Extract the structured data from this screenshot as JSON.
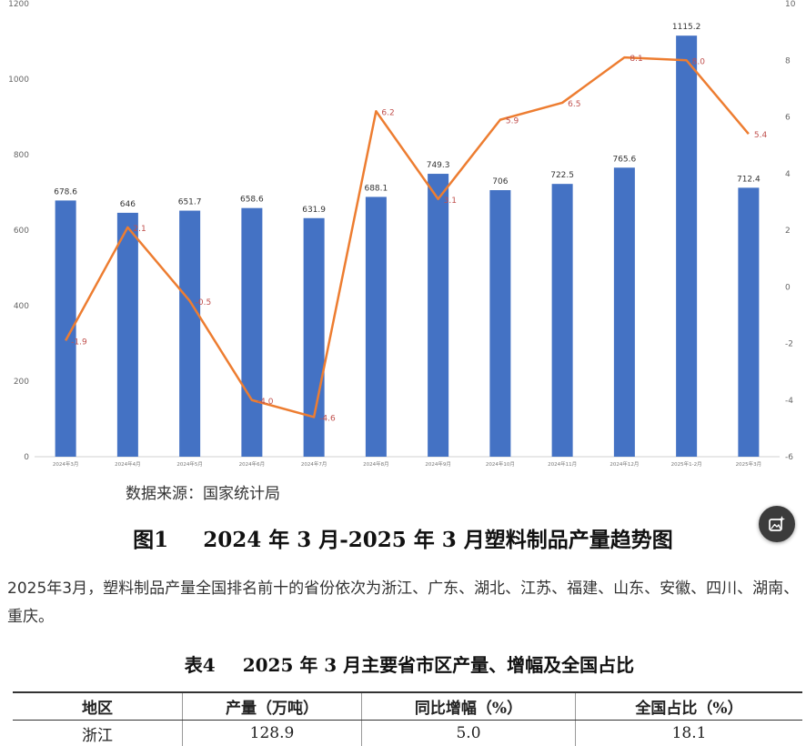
{
  "chart_data": {
    "type": "bar+line",
    "categories": [
      "2024年3月",
      "2024年4月",
      "2024年5月",
      "2024年6月",
      "2024年7月",
      "2024年8月",
      "2024年9月",
      "2024年10月",
      "2024年11月",
      "2024年12月",
      "2025年1-2月",
      "2025年3月"
    ],
    "series": [
      {
        "type": "bar",
        "axis": "left",
        "color": "#4472C4",
        "values": [
          678.6,
          646,
          651.7,
          658.6,
          631.9,
          688.1,
          749.3,
          706,
          722.5,
          765.6,
          1115.2,
          712.4
        ],
        "labels": [
          "678.6",
          "646",
          "651.7",
          "658.6",
          "631.9",
          "688.1",
          "749.3",
          "706",
          "722.5",
          "765.6",
          "1115.2",
          "712.4"
        ]
      },
      {
        "type": "line",
        "axis": "right",
        "color": "#ED7D31",
        "values": [
          -1.9,
          2.1,
          -0.5,
          -4.0,
          -4.6,
          6.2,
          3.1,
          5.9,
          6.5,
          8.1,
          8.0,
          5.4
        ],
        "labels": [
          "-1.9",
          "2.1",
          "-0.5",
          "-4.0",
          "-4.6",
          "6.2",
          "3.1",
          "5.9",
          "6.5",
          "8.1",
          "8.0",
          "5.4"
        ]
      }
    ],
    "ylim_left": [
      0,
      1200
    ],
    "left_ticks": [
      "0",
      "200",
      "400",
      "600",
      "800",
      "1000",
      "1200"
    ],
    "ylim_right": [
      -6,
      10
    ],
    "right_ticks": [
      "-6",
      "-4",
      "-2",
      "0",
      "2",
      "4",
      "6",
      "8",
      "10"
    ],
    "grid": false,
    "legend": "none"
  },
  "source_text": "数据来源：国家统计局",
  "figure": {
    "num": "图1",
    "title": "2024 年 3 月-2025 年 3 月塑料制品产量趋势图"
  },
  "fab_icon": "image-sparkle-icon",
  "paragraph": "2025年3月，塑料制品产量全国排名前十的省份依次为浙江、广东、湖北、江苏、福建、山东、安徽、四川、湖南、重庆。",
  "table": {
    "num": "表4",
    "title": "2025 年 3 月主要省市区产量、增幅及全国占比",
    "headers": [
      "地区",
      "产量（万吨）",
      "同比增幅（%）",
      "全国占比（%）"
    ],
    "rows": [
      [
        "浙江",
        "128.9",
        "5.0",
        "18.1"
      ]
    ]
  }
}
